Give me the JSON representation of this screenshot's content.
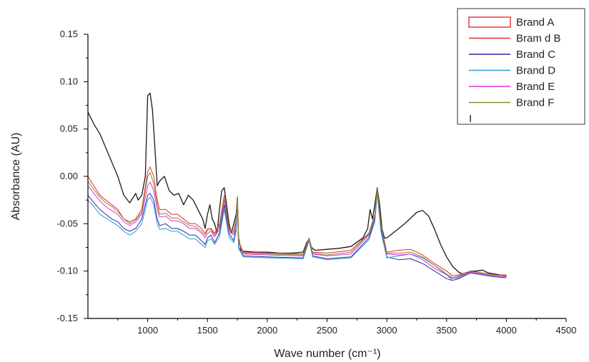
{
  "chart_data": {
    "type": "line",
    "title": "",
    "xlabel": "Wave number (cm⁻¹)",
    "ylabel": "Absorbance (AU)",
    "xlim": [
      500,
      4500
    ],
    "ylim": [
      -0.15,
      0.15
    ],
    "x_ticks": [
      1000,
      1500,
      2000,
      2500,
      3000,
      3500,
      4000,
      4500
    ],
    "x_tick_labels": [
      "1000",
      "1500",
      "2000",
      "2500",
      "3000",
      "3500",
      "4000",
      "4500"
    ],
    "y_ticks": [
      -0.15,
      -0.1,
      -0.05,
      0.0,
      0.05,
      0.1,
      0.15
    ],
    "y_tick_labels": [
      "-0.15",
      "-0.10",
      "-0.05",
      "0.00",
      "0.05",
      "0.10",
      "0.15"
    ],
    "grid": false,
    "legend_position": "top-right",
    "legend_extra": "I",
    "series": [
      {
        "name": "Brand  A",
        "color": "#1a1a1a",
        "legend_style": "box",
        "legend_color": "#e03030",
        "x": [
          500,
          550,
          600,
          650,
          700,
          750,
          800,
          850,
          900,
          920,
          950,
          980,
          1000,
          1020,
          1040,
          1060,
          1080,
          1100,
          1140,
          1180,
          1220,
          1260,
          1300,
          1340,
          1380,
          1420,
          1460,
          1480,
          1500,
          1520,
          1540,
          1560,
          1580,
          1600,
          1620,
          1640,
          1660,
          1680,
          1700,
          1720,
          1740,
          1750,
          1760,
          1780,
          1800,
          1900,
          2000,
          2100,
          2200,
          2300,
          2330,
          2350,
          2370,
          2400,
          2500,
          2600,
          2700,
          2800,
          2840,
          2860,
          2880,
          2900,
          2920,
          2940,
          2960,
          2980,
          3000,
          3050,
          3100,
          3150,
          3200,
          3250,
          3300,
          3350,
          3400,
          3450,
          3500,
          3550,
          3600,
          3650,
          3700,
          3750,
          3800,
          3850,
          3900,
          3950,
          4000
        ],
        "y": [
          0.068,
          0.055,
          0.045,
          0.03,
          0.015,
          0.0,
          -0.02,
          -0.028,
          -0.018,
          -0.025,
          -0.02,
          0.0,
          0.085,
          0.088,
          0.07,
          0.03,
          -0.01,
          -0.005,
          0.0,
          -0.015,
          -0.02,
          -0.018,
          -0.03,
          -0.02,
          -0.025,
          -0.035,
          -0.045,
          -0.055,
          -0.04,
          -0.03,
          -0.045,
          -0.05,
          -0.06,
          -0.035,
          -0.015,
          -0.012,
          -0.03,
          -0.05,
          -0.06,
          -0.05,
          -0.04,
          -0.022,
          -0.065,
          -0.078,
          -0.079,
          -0.08,
          -0.08,
          -0.081,
          -0.081,
          -0.08,
          -0.07,
          -0.066,
          -0.075,
          -0.078,
          -0.077,
          -0.076,
          -0.074,
          -0.065,
          -0.055,
          -0.035,
          -0.045,
          -0.03,
          -0.012,
          -0.03,
          -0.055,
          -0.065,
          -0.065,
          -0.06,
          -0.055,
          -0.05,
          -0.044,
          -0.038,
          -0.036,
          -0.042,
          -0.056,
          -0.072,
          -0.085,
          -0.095,
          -0.101,
          -0.104,
          -0.1,
          -0.1,
          -0.099,
          -0.102,
          -0.103,
          -0.104,
          -0.105
        ]
      },
      {
        "name": "Bram d B",
        "color": "#e03030",
        "legend_style": "line",
        "x": [
          500,
          550,
          600,
          650,
          700,
          750,
          800,
          850,
          900,
          950,
          1000,
          1020,
          1050,
          1080,
          1100,
          1150,
          1200,
          1250,
          1300,
          1350,
          1400,
          1450,
          1480,
          1500,
          1530,
          1560,
          1600,
          1640,
          1680,
          1720,
          1740,
          1750,
          1760,
          1800,
          2000,
          2300,
          2350,
          2380,
          2500,
          2700,
          2850,
          2900,
          2920,
          2950,
          3000,
          3100,
          3200,
          3300,
          3400,
          3500,
          3550,
          3600,
          3700,
          3800,
          3900,
          4000
        ],
        "y": [
          0.0,
          -0.01,
          -0.02,
          -0.025,
          -0.03,
          -0.035,
          -0.045,
          -0.048,
          -0.045,
          -0.035,
          0.005,
          0.01,
          0.0,
          -0.025,
          -0.035,
          -0.035,
          -0.04,
          -0.04,
          -0.045,
          -0.05,
          -0.05,
          -0.055,
          -0.06,
          -0.055,
          -0.055,
          -0.06,
          -0.05,
          -0.02,
          -0.055,
          -0.058,
          -0.045,
          -0.022,
          -0.068,
          -0.08,
          -0.081,
          -0.082,
          -0.065,
          -0.08,
          -0.081,
          -0.078,
          -0.06,
          -0.04,
          -0.013,
          -0.05,
          -0.08,
          -0.078,
          -0.077,
          -0.083,
          -0.092,
          -0.1,
          -0.105,
          -0.104,
          -0.1,
          -0.102,
          -0.104,
          -0.104
        ]
      },
      {
        "name": "Brand  C",
        "color": "#2a2aa8",
        "legend_style": "line",
        "x": [
          500,
          550,
          600,
          650,
          700,
          750,
          800,
          850,
          900,
          950,
          1000,
          1020,
          1050,
          1080,
          1100,
          1150,
          1200,
          1250,
          1300,
          1350,
          1400,
          1450,
          1480,
          1500,
          1530,
          1560,
          1600,
          1640,
          1680,
          1720,
          1740,
          1750,
          1760,
          1800,
          2000,
          2300,
          2350,
          2380,
          2500,
          2700,
          2850,
          2900,
          2920,
          2950,
          3000,
          3100,
          3200,
          3300,
          3400,
          3500,
          3550,
          3600,
          3700,
          3800,
          3900,
          4000
        ],
        "y": [
          -0.02,
          -0.028,
          -0.035,
          -0.04,
          -0.045,
          -0.048,
          -0.055,
          -0.058,
          -0.055,
          -0.045,
          -0.02,
          -0.018,
          -0.025,
          -0.045,
          -0.052,
          -0.05,
          -0.055,
          -0.055,
          -0.058,
          -0.062,
          -0.062,
          -0.068,
          -0.072,
          -0.065,
          -0.062,
          -0.07,
          -0.06,
          -0.03,
          -0.06,
          -0.068,
          -0.055,
          -0.025,
          -0.075,
          -0.084,
          -0.085,
          -0.086,
          -0.066,
          -0.084,
          -0.087,
          -0.085,
          -0.065,
          -0.045,
          -0.015,
          -0.055,
          -0.085,
          -0.088,
          -0.087,
          -0.092,
          -0.1,
          -0.108,
          -0.11,
          -0.108,
          -0.102,
          -0.104,
          -0.106,
          -0.107
        ]
      },
      {
        "name": "Brand  D",
        "color": "#2a9ad0",
        "legend_style": "line",
        "x": [
          500,
          550,
          600,
          650,
          700,
          750,
          800,
          850,
          900,
          950,
          1000,
          1020,
          1050,
          1080,
          1100,
          1150,
          1200,
          1250,
          1300,
          1350,
          1400,
          1450,
          1480,
          1500,
          1530,
          1560,
          1600,
          1640,
          1680,
          1720,
          1740,
          1750,
          1760,
          1800,
          2000,
          2300,
          2350,
          2380,
          2500,
          2700,
          2850,
          2900,
          2920,
          2950,
          3000,
          3100,
          3200,
          3300,
          3400,
          3500,
          3550,
          3600,
          3700,
          3800,
          3900,
          4000
        ],
        "y": [
          -0.025,
          -0.032,
          -0.04,
          -0.044,
          -0.048,
          -0.052,
          -0.058,
          -0.062,
          -0.058,
          -0.05,
          -0.025,
          -0.022,
          -0.03,
          -0.05,
          -0.056,
          -0.055,
          -0.058,
          -0.058,
          -0.062,
          -0.066,
          -0.066,
          -0.072,
          -0.075,
          -0.068,
          -0.066,
          -0.072,
          -0.064,
          -0.035,
          -0.064,
          -0.07,
          -0.058,
          -0.028,
          -0.076,
          -0.085,
          -0.086,
          -0.087,
          -0.068,
          -0.085,
          -0.088,
          -0.086,
          -0.067,
          -0.048,
          -0.018,
          -0.058,
          -0.086,
          -0.084,
          -0.082,
          -0.086,
          -0.094,
          -0.104,
          -0.11,
          -0.107,
          -0.101,
          -0.103,
          -0.105,
          -0.106
        ]
      },
      {
        "name": "Brand  E",
        "color": "#e030e0",
        "legend_style": "line",
        "x": [
          500,
          550,
          600,
          650,
          700,
          750,
          800,
          850,
          900,
          950,
          1000,
          1020,
          1050,
          1080,
          1100,
          1150,
          1200,
          1250,
          1300,
          1350,
          1400,
          1450,
          1480,
          1500,
          1530,
          1560,
          1600,
          1640,
          1680,
          1720,
          1740,
          1750,
          1760,
          1800,
          2000,
          2300,
          2350,
          2380,
          2500,
          2700,
          2850,
          2900,
          2920,
          2950,
          3000,
          3100,
          3200,
          3300,
          3400,
          3500,
          3550,
          3600,
          3700,
          3800,
          3900,
          4000
        ],
        "y": [
          -0.01,
          -0.018,
          -0.026,
          -0.032,
          -0.036,
          -0.04,
          -0.048,
          -0.052,
          -0.048,
          -0.04,
          -0.01,
          -0.006,
          -0.015,
          -0.035,
          -0.043,
          -0.042,
          -0.047,
          -0.047,
          -0.05,
          -0.055,
          -0.055,
          -0.06,
          -0.065,
          -0.06,
          -0.058,
          -0.064,
          -0.055,
          -0.025,
          -0.058,
          -0.062,
          -0.05,
          -0.023,
          -0.07,
          -0.082,
          -0.083,
          -0.084,
          -0.065,
          -0.082,
          -0.084,
          -0.082,
          -0.062,
          -0.042,
          -0.014,
          -0.052,
          -0.082,
          -0.083,
          -0.082,
          -0.088,
          -0.097,
          -0.104,
          -0.108,
          -0.106,
          -0.101,
          -0.103,
          -0.105,
          -0.106
        ]
      },
      {
        "name": "Brand  F",
        "color": "#8a8a2a",
        "legend_style": "line",
        "x": [
          500,
          550,
          600,
          650,
          700,
          750,
          800,
          850,
          900,
          950,
          1000,
          1020,
          1050,
          1080,
          1100,
          1150,
          1200,
          1250,
          1300,
          1350,
          1400,
          1450,
          1480,
          1500,
          1530,
          1560,
          1600,
          1640,
          1680,
          1720,
          1740,
          1750,
          1760,
          1800,
          2000,
          2300,
          2350,
          2380,
          2500,
          2700,
          2850,
          2900,
          2920,
          2950,
          3000,
          3100,
          3200,
          3300,
          3400,
          3500,
          3550,
          3600,
          3700,
          3800,
          3900,
          4000
        ],
        "y": [
          -0.005,
          -0.014,
          -0.022,
          -0.028,
          -0.032,
          -0.037,
          -0.045,
          -0.05,
          -0.046,
          -0.038,
          0.0,
          0.004,
          -0.008,
          -0.03,
          -0.04,
          -0.039,
          -0.044,
          -0.044,
          -0.048,
          -0.052,
          -0.053,
          -0.058,
          -0.062,
          -0.057,
          -0.056,
          -0.062,
          -0.052,
          -0.022,
          -0.056,
          -0.06,
          -0.047,
          -0.021,
          -0.069,
          -0.081,
          -0.082,
          -0.083,
          -0.066,
          -0.081,
          -0.083,
          -0.08,
          -0.061,
          -0.041,
          -0.013,
          -0.051,
          -0.081,
          -0.081,
          -0.08,
          -0.085,
          -0.094,
          -0.103,
          -0.107,
          -0.105,
          -0.1,
          -0.102,
          -0.104,
          -0.105
        ]
      }
    ]
  }
}
